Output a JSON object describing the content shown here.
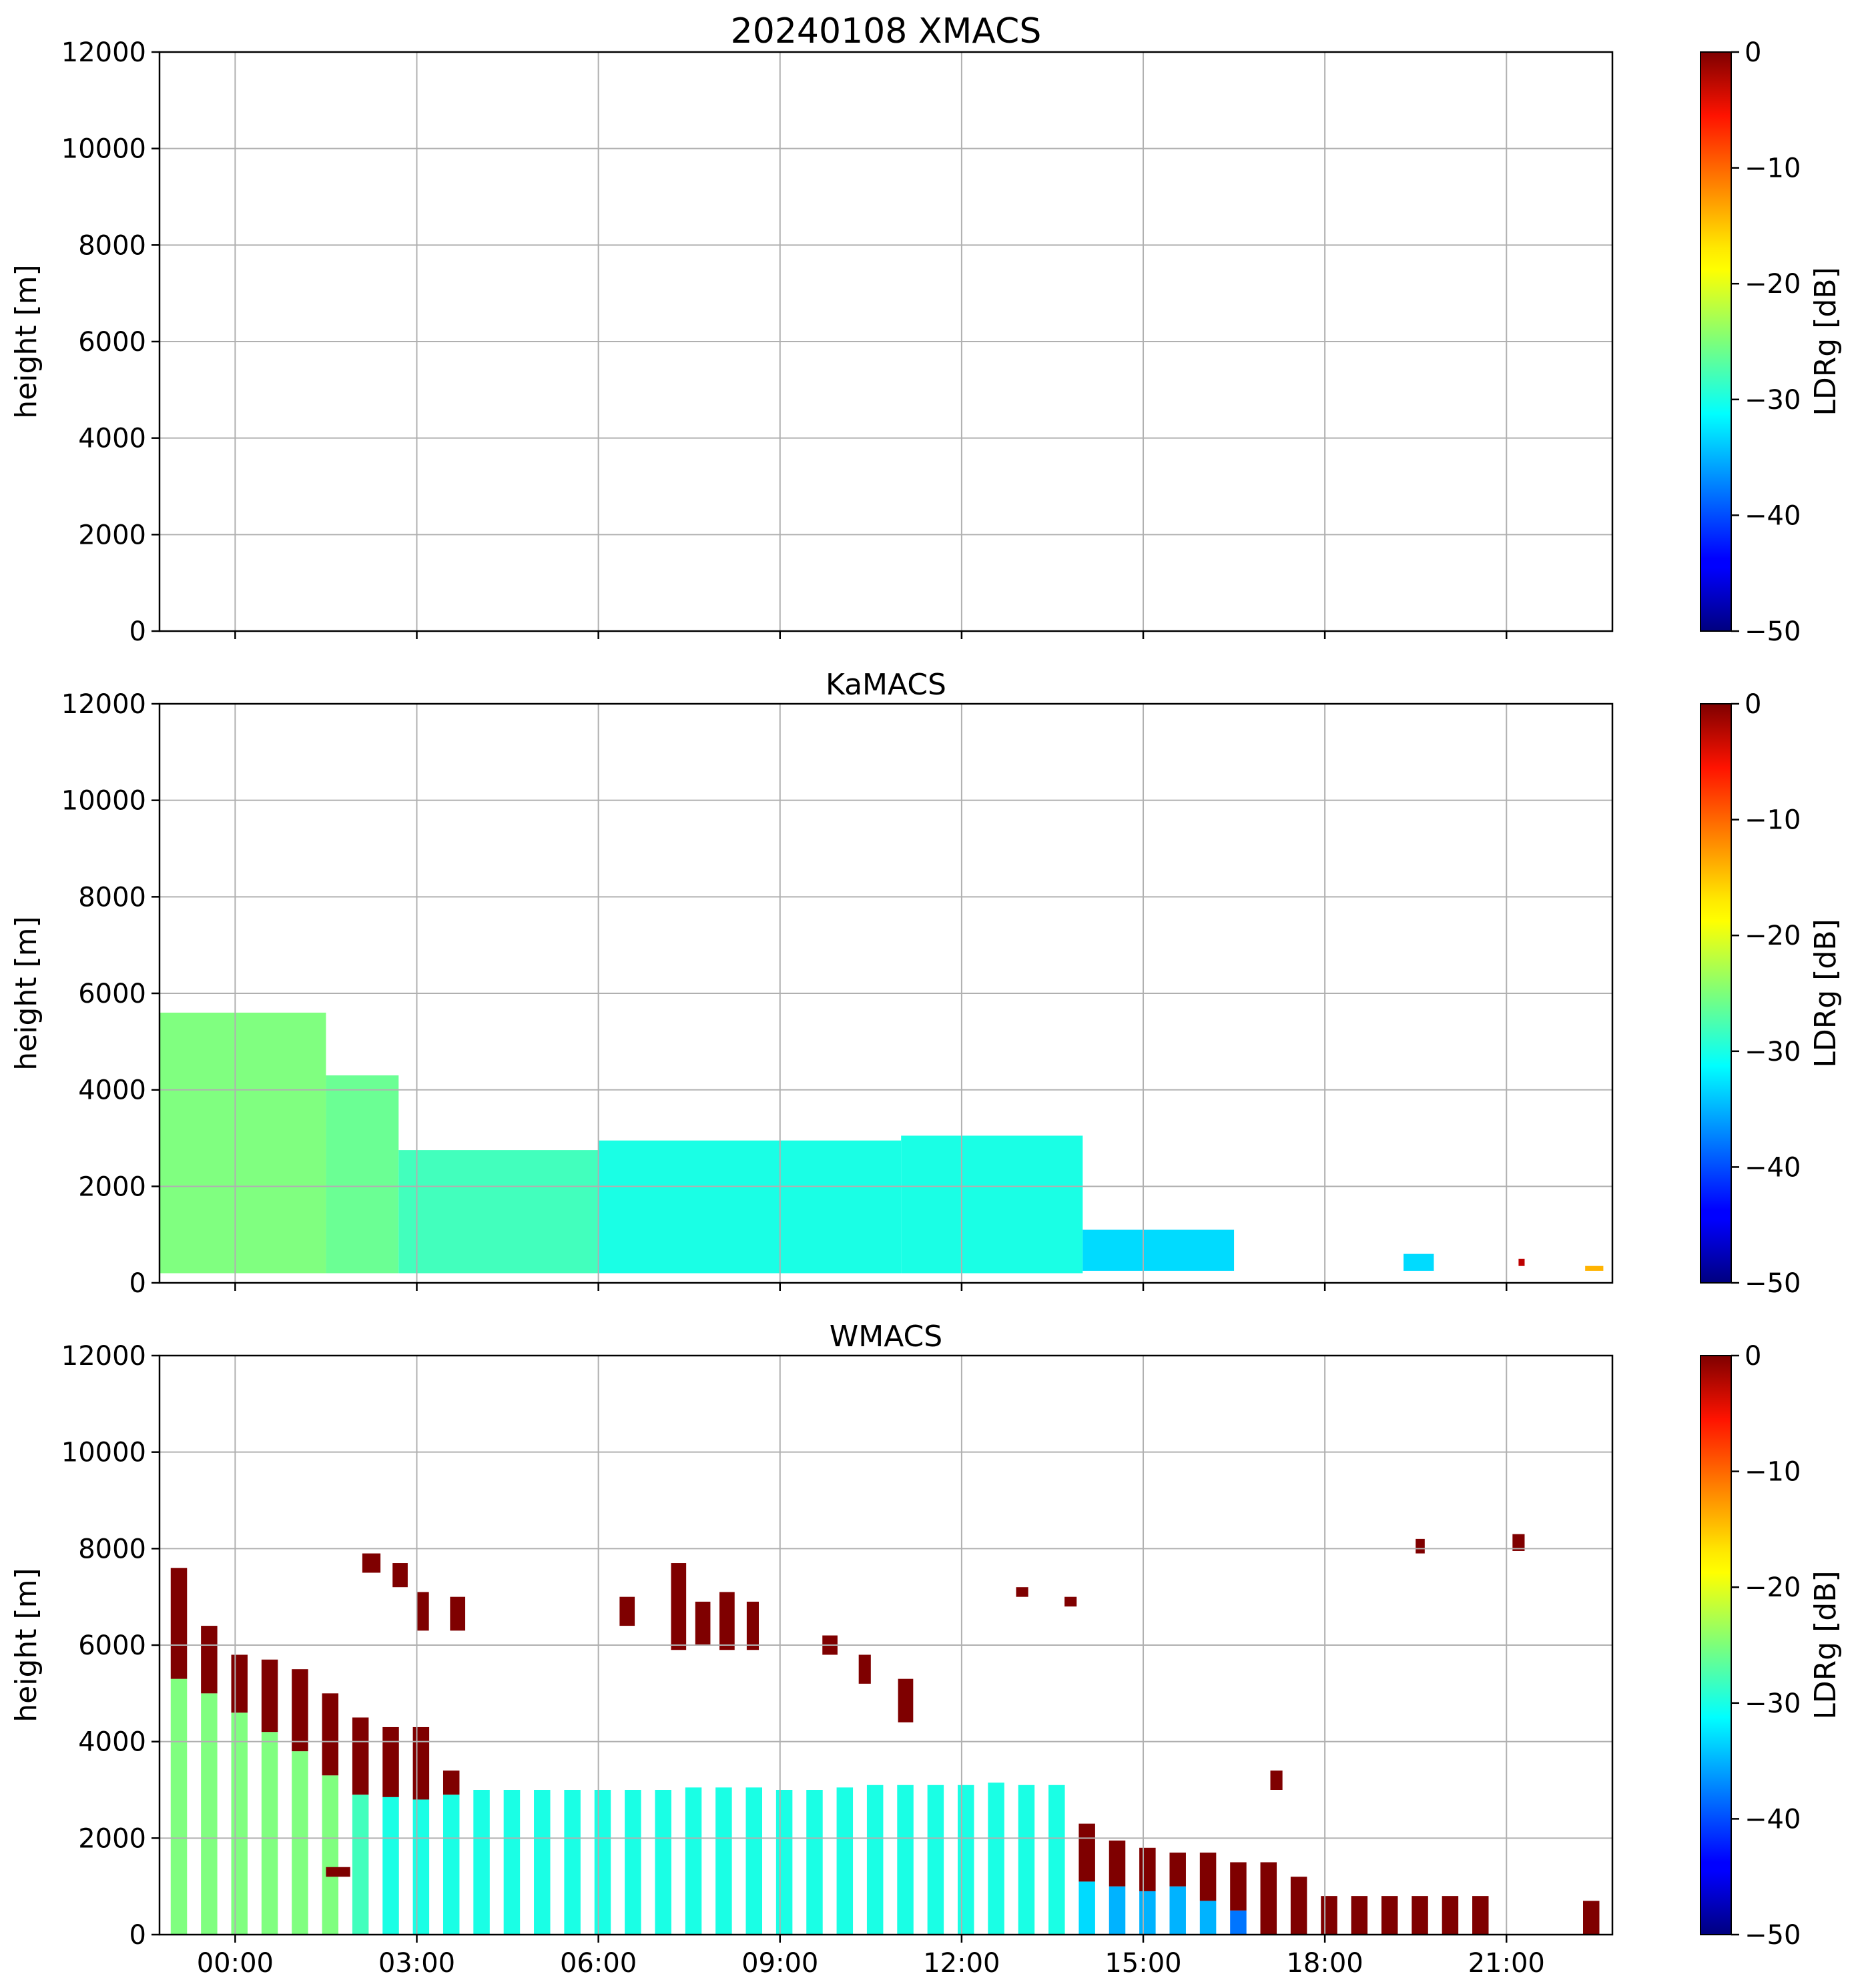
{
  "chart_data": [
    {
      "type": "heatmap",
      "title": "20240108 XMACS",
      "ylabel": "height [m]",
      "ylim": [
        0,
        12000
      ],
      "yticks": [
        "0",
        "2000",
        "4000",
        "6000",
        "8000",
        "10000",
        "12000"
      ],
      "xlim_hours": [
        -1.25,
        22.75
      ],
      "xticks_hours": [
        0,
        3,
        6,
        9,
        12,
        15,
        18,
        21
      ],
      "xtick_labels_shown": false,
      "grid": true,
      "colorbar": {
        "label": "LDRg [dB]",
        "range": [
          -50,
          0
        ],
        "ticks": [
          "0",
          "−10",
          "−20",
          "−30",
          "−40",
          "−50"
        ],
        "colormap": "jet"
      },
      "regions": []
    },
    {
      "type": "heatmap",
      "title": "KaMACS",
      "ylabel": "height [m]",
      "ylim": [
        0,
        12000
      ],
      "yticks": [
        "0",
        "2000",
        "4000",
        "6000",
        "8000",
        "10000",
        "12000"
      ],
      "xlim_hours": [
        -1.25,
        22.75
      ],
      "xticks_hours": [
        0,
        3,
        6,
        9,
        12,
        15,
        18,
        21
      ],
      "xtick_labels_shown": false,
      "grid": true,
      "colorbar": {
        "label": "LDRg [dB]",
        "range": [
          -50,
          0
        ],
        "ticks": [
          "0",
          "−10",
          "−20",
          "−30",
          "−40",
          "−50"
        ],
        "colormap": "jet"
      },
      "regions": [
        {
          "t0": -1.25,
          "t1": 1.5,
          "h0": 200,
          "h1": 5600,
          "ldr": -25
        },
        {
          "t0": 1.5,
          "t1": 2.7,
          "h0": 200,
          "h1": 4300,
          "ldr": -26
        },
        {
          "t0": 2.7,
          "t1": 6.0,
          "h0": 200,
          "h1": 2750,
          "ldr": -28
        },
        {
          "t0": 6.0,
          "t1": 11.0,
          "h0": 200,
          "h1": 2950,
          "ldr": -30
        },
        {
          "t0": 11.0,
          "t1": 14.0,
          "h0": 200,
          "h1": 3050,
          "ldr": -30
        },
        {
          "t0": 14.0,
          "t1": 16.5,
          "h0": 250,
          "h1": 1100,
          "ldr": -33
        },
        {
          "t0": 19.3,
          "t1": 19.8,
          "h0": 250,
          "h1": 600,
          "ldr": -33
        },
        {
          "t0": 21.2,
          "t1": 21.3,
          "h0": 350,
          "h1": 500,
          "ldr": -3
        },
        {
          "t0": 22.3,
          "t1": 22.6,
          "h0": 250,
          "h1": 350,
          "ldr": -15
        }
      ]
    },
    {
      "type": "heatmap",
      "title": "WMACS",
      "ylabel": "height [m]",
      "ylim": [
        0,
        12000
      ],
      "yticks": [
        "0",
        "2000",
        "4000",
        "6000",
        "8000",
        "10000",
        "12000"
      ],
      "xlim_hours": [
        -1.25,
        22.75
      ],
      "xticks_hours": [
        0,
        3,
        6,
        9,
        12,
        15,
        18,
        21
      ],
      "xtick_labels": [
        "00:00",
        "03:00",
        "06:00",
        "09:00",
        "12:00",
        "15:00",
        "18:00",
        "21:00"
      ],
      "grid": true,
      "colorbar": {
        "label": "LDRg [dB]",
        "range": [
          -50,
          0
        ],
        "ticks": [
          "0",
          "−10",
          "−20",
          "−30",
          "−40",
          "−50"
        ],
        "colormap": "jet"
      },
      "stripes": [
        {
          "t": -0.93,
          "h_low": 5300,
          "h_top": 7600,
          "ldr_low": -25
        },
        {
          "t": -0.43,
          "h_low": 5000,
          "h_top": 6400,
          "ldr_low": -25
        },
        {
          "t": 0.07,
          "h_low": 4600,
          "h_top": 5800,
          "ldr_low": -25
        },
        {
          "t": 0.57,
          "h_low": 4200,
          "h_top": 5700,
          "ldr_low": -25
        },
        {
          "t": 1.07,
          "h_low": 3800,
          "h_top": 5500,
          "ldr_low": -25
        },
        {
          "t": 1.57,
          "h_low": 3300,
          "h_top": 5000,
          "ldr_low": -25
        },
        {
          "t": 2.07,
          "h_low": 2900,
          "h_top": 4500,
          "ldr_low": -28
        },
        {
          "t": 2.57,
          "h_low": 2850,
          "h_top": 4300,
          "ldr_low": -30
        },
        {
          "t": 3.07,
          "h_low": 2800,
          "h_top": 4300,
          "ldr_low": -30
        },
        {
          "t": 3.57,
          "h_low": 2900,
          "h_top": 3400,
          "ldr_low": -30
        },
        {
          "t": 4.07,
          "h_low": 3000,
          "h_top": 3000,
          "ldr_low": -30
        },
        {
          "t": 4.57,
          "h_low": 3000,
          "h_top": 3000,
          "ldr_low": -30
        },
        {
          "t": 5.07,
          "h_low": 3000,
          "h_top": 3000,
          "ldr_low": -30
        },
        {
          "t": 5.57,
          "h_low": 3000,
          "h_top": 3000,
          "ldr_low": -30
        },
        {
          "t": 6.07,
          "h_low": 3000,
          "h_top": 3000,
          "ldr_low": -30
        },
        {
          "t": 6.57,
          "h_low": 3000,
          "h_top": 3000,
          "ldr_low": -30
        },
        {
          "t": 7.07,
          "h_low": 3000,
          "h_top": 3000,
          "ldr_low": -30
        },
        {
          "t": 7.57,
          "h_low": 3050,
          "h_top": 3050,
          "ldr_low": -30
        },
        {
          "t": 8.07,
          "h_low": 3050,
          "h_top": 3050,
          "ldr_low": -30
        },
        {
          "t": 8.57,
          "h_low": 3050,
          "h_top": 3050,
          "ldr_low": -30
        },
        {
          "t": 9.07,
          "h_low": 3000,
          "h_top": 3000,
          "ldr_low": -30
        },
        {
          "t": 9.57,
          "h_low": 3000,
          "h_top": 3000,
          "ldr_low": -30
        },
        {
          "t": 10.07,
          "h_low": 3050,
          "h_top": 3050,
          "ldr_low": -30
        },
        {
          "t": 10.57,
          "h_low": 3100,
          "h_top": 3100,
          "ldr_low": -30
        },
        {
          "t": 11.07,
          "h_low": 3100,
          "h_top": 3100,
          "ldr_low": -30
        },
        {
          "t": 11.57,
          "h_low": 3100,
          "h_top": 3100,
          "ldr_low": -30
        },
        {
          "t": 12.07,
          "h_low": 3100,
          "h_top": 3100,
          "ldr_low": -30
        },
        {
          "t": 12.57,
          "h_low": 3150,
          "h_top": 3150,
          "ldr_low": -30
        },
        {
          "t": 13.07,
          "h_low": 3100,
          "h_top": 3100,
          "ldr_low": -30
        },
        {
          "t": 13.57,
          "h_low": 3100,
          "h_top": 3100,
          "ldr_low": -30
        },
        {
          "t": 14.07,
          "h_low": 1100,
          "h_top": 2300,
          "ldr_low": -33
        },
        {
          "t": 14.57,
          "h_low": 1000,
          "h_top": 1950,
          "ldr_low": -35
        },
        {
          "t": 15.07,
          "h_low": 900,
          "h_top": 1800,
          "ldr_low": -35
        },
        {
          "t": 15.57,
          "h_low": 1000,
          "h_top": 1700,
          "ldr_low": -35
        },
        {
          "t": 16.07,
          "h_low": 700,
          "h_top": 1700,
          "ldr_low": -35
        },
        {
          "t": 16.57,
          "h_low": 500,
          "h_top": 1500,
          "ldr_low": -38
        },
        {
          "t": 17.07,
          "h_low": 0,
          "h_top": 1500,
          "ldr_low": -2
        },
        {
          "t": 17.57,
          "h_low": 0,
          "h_top": 1200,
          "ldr_low": -2
        },
        {
          "t": 18.07,
          "h_low": 0,
          "h_top": 800,
          "ldr_low": -2
        },
        {
          "t": 18.57,
          "h_low": 0,
          "h_top": 800,
          "ldr_low": -2
        },
        {
          "t": 19.07,
          "h_low": 0,
          "h_top": 800,
          "ldr_low": -2
        },
        {
          "t": 19.57,
          "h_low": 0,
          "h_top": 800,
          "ldr_low": -2
        },
        {
          "t": 20.07,
          "h_low": 0,
          "h_top": 800,
          "ldr_low": -2
        },
        {
          "t": 20.57,
          "h_low": 0,
          "h_top": 800,
          "ldr_low": -2
        },
        {
          "t": 22.4,
          "h_low": 0,
          "h_top": 700,
          "ldr_low": -2
        }
      ],
      "patches": [
        {
          "t0": 2.1,
          "t1": 2.4,
          "h0": 7500,
          "h1": 7900
        },
        {
          "t0": 2.6,
          "t1": 2.85,
          "h0": 7200,
          "h1": 7700
        },
        {
          "t0": 3.0,
          "t1": 3.2,
          "h0": 6300,
          "h1": 7100
        },
        {
          "t0": 3.55,
          "t1": 3.8,
          "h0": 6300,
          "h1": 7000
        },
        {
          "t0": 6.35,
          "t1": 6.6,
          "h0": 6400,
          "h1": 7000
        },
        {
          "t0": 7.2,
          "t1": 7.45,
          "h0": 5900,
          "h1": 7700
        },
        {
          "t0": 7.6,
          "t1": 7.85,
          "h0": 6000,
          "h1": 6900
        },
        {
          "t0": 8.0,
          "t1": 8.25,
          "h0": 5900,
          "h1": 7100
        },
        {
          "t0": 8.45,
          "t1": 8.65,
          "h0": 5900,
          "h1": 6900
        },
        {
          "t0": 9.7,
          "t1": 9.95,
          "h0": 5800,
          "h1": 6200
        },
        {
          "t0": 10.3,
          "t1": 10.5,
          "h0": 5200,
          "h1": 5800
        },
        {
          "t0": 10.95,
          "t1": 11.2,
          "h0": 4400,
          "h1": 5300
        },
        {
          "t0": 12.9,
          "t1": 13.1,
          "h0": 7000,
          "h1": 7200
        },
        {
          "t0": 13.7,
          "t1": 13.9,
          "h0": 6800,
          "h1": 7000
        },
        {
          "t0": 17.1,
          "t1": 17.3,
          "h0": 3000,
          "h1": 3400
        },
        {
          "t0": 19.5,
          "t1": 19.65,
          "h0": 7900,
          "h1": 8200
        },
        {
          "t0": 21.1,
          "t1": 21.3,
          "h0": 7950,
          "h1": 8300
        },
        {
          "t0": 1.5,
          "t1": 1.9,
          "h0": 1200,
          "h1": 1400
        }
      ]
    }
  ]
}
